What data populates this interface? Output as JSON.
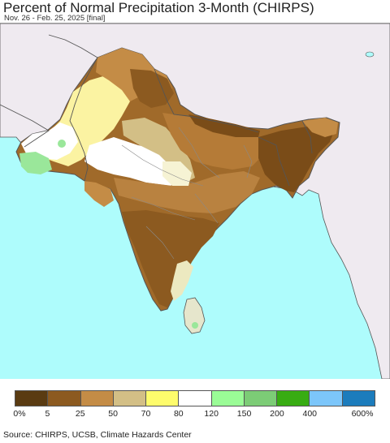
{
  "title": "Percent of Normal Precipitation 3-Month (CHIRPS)",
  "subtitle": "Nov. 26 - Feb. 25, 2025 [final]",
  "source": "Source: CHIRPS, UCSB, Climate Hazards Center",
  "colors": {
    "ocean": "#aefcfc",
    "land_outside": "#efeaf0",
    "border": "#555555",
    "state_border": "#8a8a8a"
  },
  "legend": {
    "colors": [
      "#5a3b12",
      "#8c5a20",
      "#c48c46",
      "#d3bf86",
      "#fefc6c",
      "#ffffff",
      "#9afc96",
      "#7ccc76",
      "#38ac13",
      "#7cc6fa",
      "#1c7cbc"
    ],
    "labels": [
      "0%",
      "5",
      "25",
      "50",
      "70",
      "80",
      "120",
      "150",
      "200",
      "400",
      "600%"
    ]
  },
  "map_regions": [
    {
      "name": "northern-mountains",
      "category": "50-70"
    },
    {
      "name": "kashmir",
      "category": "25-50"
    },
    {
      "name": "indus-plains",
      "category": "70-80"
    },
    {
      "name": "balochistan",
      "category": "80-120"
    },
    {
      "name": "sindh-coast",
      "category": "150-200"
    },
    {
      "name": "thar-desert",
      "category": "80-120"
    },
    {
      "name": "gangetic-plain",
      "category": "25-50"
    },
    {
      "name": "nepal",
      "category": "5-25"
    },
    {
      "name": "bangladesh-ne",
      "category": "5-25"
    },
    {
      "name": "peninsula",
      "category": "5-25"
    },
    {
      "name": "southeast-coast",
      "category": "70-120"
    },
    {
      "name": "sri-lanka",
      "category": "80-150"
    }
  ]
}
